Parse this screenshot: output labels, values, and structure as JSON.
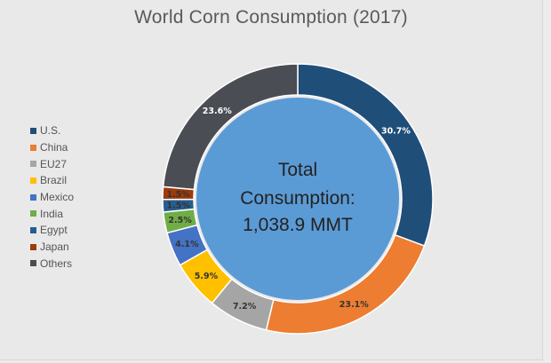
{
  "chart_data": {
    "type": "pie",
    "title": "World Corn Consumption (2017)",
    "center_text": [
      "Total",
      "Consumption:",
      "1,038.9 MMT"
    ],
    "slices": [
      {
        "name": "U.S.",
        "value": 30.7,
        "label": "30.7%",
        "color": "#1f4e79",
        "label_color": "#ffffff"
      },
      {
        "name": "China",
        "value": 23.1,
        "label": "23.1%",
        "color": "#ed7d31",
        "label_color": "#333333"
      },
      {
        "name": "EU27",
        "value": 7.2,
        "label": "7.2%",
        "color": "#a5a5a5",
        "label_color": "#333333"
      },
      {
        "name": "Brazil",
        "value": 5.9,
        "label": "5.9%",
        "color": "#ffc000",
        "label_color": "#333333"
      },
      {
        "name": "Mexico",
        "value": 4.1,
        "label": "4.1%",
        "color": "#4472c4",
        "label_color": "#333333"
      },
      {
        "name": "India",
        "value": 2.5,
        "label": "2.5%",
        "color": "#70ad47",
        "label_color": "#333333"
      },
      {
        "name": "Egypt",
        "value": 1.5,
        "label": "1.5%",
        "color": "#255e91",
        "label_color": "#333333"
      },
      {
        "name": "Japan",
        "value": 1.5,
        "label": "1.5%",
        "color": "#9e3a0b",
        "label_color": "#333333"
      },
      {
        "name": "Others",
        "value": 23.6,
        "label": "23.6%",
        "color": "#4a4d53",
        "label_color": "#ffffff"
      }
    ],
    "legend_position": "left",
    "center_circle_color": "#5b9bd5"
  }
}
